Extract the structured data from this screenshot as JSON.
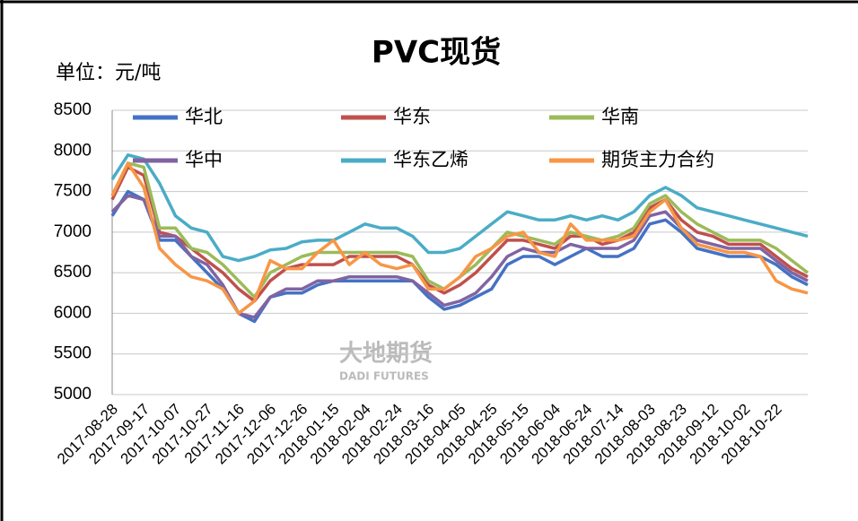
{
  "chart_data": {
    "type": "line",
    "title": "PVC现货",
    "y_label": "单位：元/吨",
    "watermark": {
      "name": "大地期货",
      "sub": "DADI FUTURES"
    },
    "categories": [
      "2017-08-28",
      null,
      "2017-09-17",
      null,
      "2017-10-07",
      null,
      "2017-10-27",
      null,
      "2017-11-16",
      null,
      "2017-12-06",
      null,
      "2017-12-26",
      null,
      "2018-01-15",
      null,
      "2018-02-04",
      null,
      "2018-02-24",
      null,
      "2018-03-16",
      null,
      "2018-04-05",
      null,
      "2018-04-25",
      null,
      "2018-05-15",
      null,
      "2018-06-04",
      null,
      "2018-06-24",
      null,
      "2018-07-14",
      null,
      "2018-08-03",
      null,
      "2018-08-23",
      null,
      "2018-09-12",
      null,
      "2018-10-02",
      null,
      "2018-10-22",
      null,
      null
    ],
    "ylim": [
      5000,
      8500
    ],
    "yticks": [
      5000,
      5500,
      6000,
      6500,
      7000,
      7500,
      8000,
      8500
    ],
    "grid": true,
    "series": [
      {
        "name": "华北",
        "color": "#4472c4",
        "values": [
          7200,
          7500,
          7400,
          6900,
          6900,
          6700,
          6500,
          6300,
          6000,
          5900,
          6200,
          6250,
          6250,
          6350,
          6400,
          6400,
          6400,
          6400,
          6400,
          6400,
          6200,
          6050,
          6100,
          6200,
          6300,
          6600,
          6700,
          6700,
          6600,
          6700,
          6800,
          6700,
          6700,
          6800,
          7100,
          7150,
          7000,
          6800,
          6750,
          6700,
          6700,
          6700,
          6600,
          6450,
          6350
        ]
      },
      {
        "name": "华东",
        "color": "#c0504d",
        "values": [
          7400,
          7800,
          7700,
          7000,
          6950,
          6800,
          6650,
          6500,
          6300,
          6150,
          6400,
          6550,
          6600,
          6600,
          6600,
          6700,
          6700,
          6700,
          6700,
          6600,
          6350,
          6250,
          6350,
          6500,
          6700,
          6900,
          6900,
          6850,
          6800,
          6950,
          6950,
          6850,
          6900,
          7000,
          7300,
          7400,
          7150,
          7000,
          6950,
          6850,
          6850,
          6850,
          6700,
          6550,
          6450
        ]
      },
      {
        "name": "华南",
        "color": "#9bbb59",
        "values": [
          7450,
          7850,
          7800,
          7050,
          7050,
          6800,
          6750,
          6600,
          6400,
          6200,
          6500,
          6600,
          6700,
          6750,
          6750,
          6750,
          6750,
          6750,
          6750,
          6700,
          6400,
          6300,
          6450,
          6600,
          6800,
          7000,
          6950,
          6900,
          6850,
          7000,
          6950,
          6900,
          6950,
          7050,
          7350,
          7450,
          7250,
          7100,
          7000,
          6900,
          6900,
          6900,
          6800,
          6650,
          6500
        ]
      },
      {
        "name": "华中",
        "color": "#8064a2",
        "values": [
          7250,
          7450,
          7400,
          6950,
          6950,
          6700,
          6600,
          6350,
          6000,
          5950,
          6200,
          6300,
          6300,
          6400,
          6400,
          6450,
          6450,
          6450,
          6450,
          6400,
          6250,
          6100,
          6150,
          6250,
          6450,
          6700,
          6800,
          6750,
          6750,
          6850,
          6800,
          6800,
          6800,
          6900,
          7200,
          7250,
          7050,
          6900,
          6850,
          6800,
          6800,
          6800,
          6650,
          6500,
          6400
        ]
      },
      {
        "name": "华东乙烯",
        "color": "#4bacc6",
        "values": [
          7650,
          7950,
          7900,
          7600,
          7200,
          7050,
          7000,
          6700,
          6650,
          6700,
          6780,
          6800,
          6880,
          6900,
          6900,
          7000,
          7100,
          7050,
          7050,
          6950,
          6750,
          6750,
          6800,
          6950,
          7100,
          7250,
          7200,
          7150,
          7150,
          7200,
          7150,
          7200,
          7150,
          7250,
          7450,
          7550,
          7450,
          7300,
          7250,
          7200,
          7150,
          7100,
          7050,
          7000,
          6950
        ]
      },
      {
        "name": "期货主力合约",
        "color": "#f79646",
        "values": [
          7450,
          7850,
          7550,
          6800,
          6600,
          6450,
          6400,
          6300,
          6000,
          6150,
          6650,
          6550,
          6550,
          6750,
          6900,
          6600,
          6750,
          6600,
          6550,
          6600,
          6300,
          6300,
          6450,
          6700,
          6800,
          6950,
          7000,
          6750,
          6700,
          7100,
          6900,
          6900,
          6900,
          6950,
          7250,
          7400,
          7050,
          6850,
          6800,
          6750,
          6750,
          6700,
          6400,
          6300,
          6250
        ]
      }
    ]
  }
}
